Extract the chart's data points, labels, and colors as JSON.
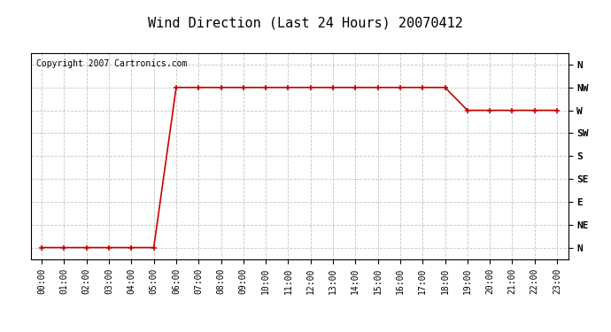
{
  "title": "Wind Direction (Last 24 Hours) 20070412",
  "copyright_text": "Copyright 2007 Cartronics.com",
  "background_color": "#ffffff",
  "plot_bg_color": "#ffffff",
  "grid_color": "#bebebe",
  "line_color": "#cc0000",
  "marker_color": "#cc0000",
  "ytick_labels": [
    "N",
    "NE",
    "E",
    "SE",
    "S",
    "SW",
    "W",
    "NW",
    "N"
  ],
  "ytick_values": [
    0,
    1,
    2,
    3,
    4,
    5,
    6,
    7,
    8
  ],
  "hours": [
    0,
    1,
    2,
    3,
    4,
    5,
    6,
    7,
    8,
    9,
    10,
    11,
    12,
    13,
    14,
    15,
    16,
    17,
    18,
    19,
    20,
    21,
    22,
    23
  ],
  "wind_values": [
    0,
    0,
    0,
    0,
    0,
    0,
    7,
    7,
    7,
    7,
    7,
    7,
    7,
    7,
    7,
    7,
    7,
    7,
    7,
    6,
    6,
    6,
    6,
    6
  ],
  "xlim": [
    -0.5,
    23.5
  ],
  "ylim": [
    -0.5,
    8.5
  ],
  "title_fontsize": 11,
  "copyright_fontsize": 7,
  "axis_label_fontsize": 7,
  "ytick_fontsize": 8
}
